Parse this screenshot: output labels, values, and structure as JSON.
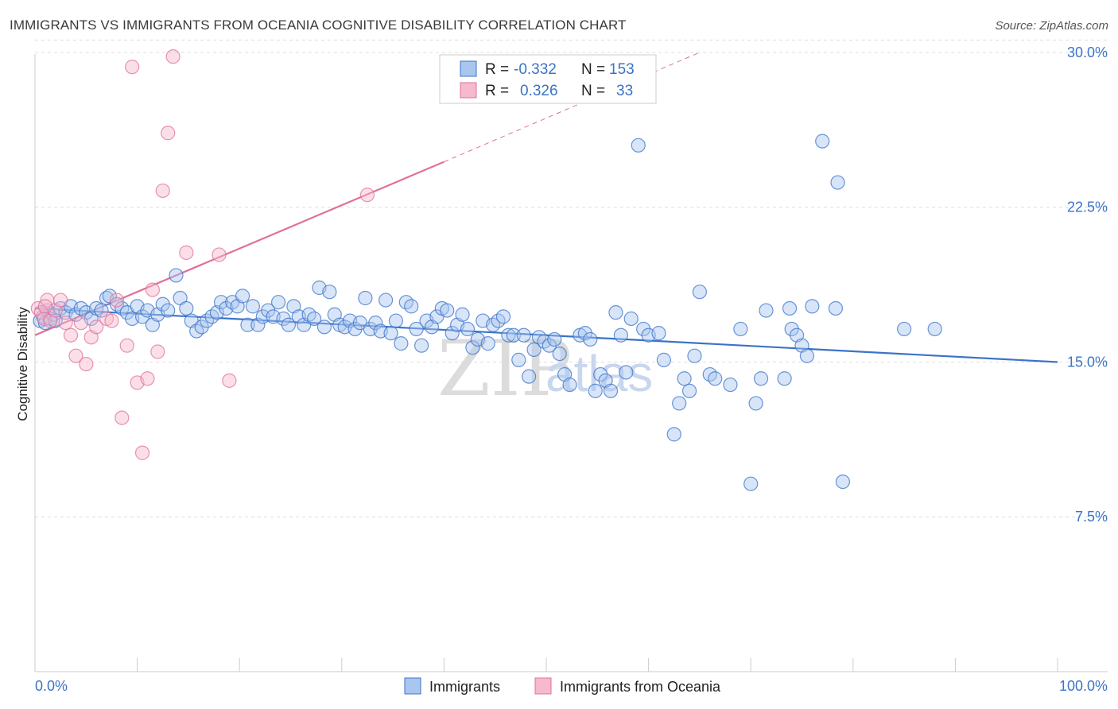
{
  "title": "IMMIGRANTS VS IMMIGRANTS FROM OCEANIA COGNITIVE DISABILITY CORRELATION CHART",
  "source": "Source: ZipAtlas.com",
  "watermark": {
    "zip": "ZIP",
    "atlas": "atlas"
  },
  "colors": {
    "blue": "#3b73c8",
    "blue_fill": "#a9c6ef",
    "pink": "#e0709a",
    "pink_fill": "#f6b9cd",
    "grid": "#dddddd"
  },
  "legend": {
    "r_label": "R =",
    "n_label": "N =",
    "rows": [
      {
        "r": "-0.332",
        "n": "153"
      },
      {
        "r": "0.326",
        "n": "33"
      }
    ]
  },
  "bottom_legend": [
    "Immigrants",
    "Immigrants from Oceania"
  ],
  "chart_data": {
    "type": "scatter",
    "title": "IMMIGRANTS VS IMMIGRANTS FROM OCEANIA COGNITIVE DISABILITY CORRELATION CHART",
    "xlabel": "",
    "ylabel": "Cognitive Disability",
    "xlim": [
      0,
      100
    ],
    "ylim": [
      0,
      31
    ],
    "x_tick_labels": [
      "0.0%",
      "100.0%"
    ],
    "y_ticks": [
      7.5,
      15.0,
      22.5,
      30.0
    ],
    "y_tick_labels": [
      "7.5%",
      "15.0%",
      "22.5%",
      "30.0%"
    ],
    "grid": "horizontal dashed",
    "series": [
      {
        "name": "Immigrants",
        "color": "#3b73c8",
        "trend": {
          "x0": 0,
          "y0": 17.6,
          "x1": 100,
          "y1": 15.0
        },
        "points": [
          [
            0.5,
            17.0
          ],
          [
            0.8,
            17.2
          ],
          [
            1.0,
            16.9
          ],
          [
            1.2,
            17.5
          ],
          [
            1.5,
            17.1
          ],
          [
            1.8,
            17.3
          ],
          [
            2.0,
            17.0
          ],
          [
            2.5,
            17.6
          ],
          [
            3.0,
            17.4
          ],
          [
            3.5,
            17.7
          ],
          [
            4.0,
            17.3
          ],
          [
            4.5,
            17.6
          ],
          [
            5.0,
            17.4
          ],
          [
            5.5,
            17.1
          ],
          [
            6.0,
            17.6
          ],
          [
            6.5,
            17.5
          ],
          [
            7.0,
            18.1
          ],
          [
            7.3,
            18.2
          ],
          [
            8.0,
            17.8
          ],
          [
            8.5,
            17.6
          ],
          [
            9.0,
            17.4
          ],
          [
            9.5,
            17.1
          ],
          [
            10.0,
            17.7
          ],
          [
            10.5,
            17.2
          ],
          [
            11.0,
            17.5
          ],
          [
            11.5,
            16.8
          ],
          [
            12.0,
            17.3
          ],
          [
            12.5,
            17.8
          ],
          [
            13.0,
            17.5
          ],
          [
            13.8,
            19.2
          ],
          [
            14.2,
            18.1
          ],
          [
            14.8,
            17.6
          ],
          [
            15.3,
            17.0
          ],
          [
            15.8,
            16.5
          ],
          [
            16.3,
            16.7
          ],
          [
            16.8,
            17.0
          ],
          [
            17.3,
            17.2
          ],
          [
            17.8,
            17.4
          ],
          [
            18.2,
            17.9
          ],
          [
            18.7,
            17.6
          ],
          [
            19.3,
            17.9
          ],
          [
            19.8,
            17.7
          ],
          [
            20.3,
            18.2
          ],
          [
            20.8,
            16.8
          ],
          [
            21.3,
            17.7
          ],
          [
            21.8,
            16.8
          ],
          [
            22.3,
            17.2
          ],
          [
            22.8,
            17.5
          ],
          [
            23.3,
            17.2
          ],
          [
            23.8,
            17.9
          ],
          [
            24.3,
            17.1
          ],
          [
            24.8,
            16.8
          ],
          [
            25.3,
            17.7
          ],
          [
            25.8,
            17.2
          ],
          [
            26.3,
            16.8
          ],
          [
            26.8,
            17.3
          ],
          [
            27.3,
            17.1
          ],
          [
            27.8,
            18.6
          ],
          [
            28.3,
            16.7
          ],
          [
            28.8,
            18.4
          ],
          [
            29.3,
            17.3
          ],
          [
            29.8,
            16.8
          ],
          [
            30.3,
            16.7
          ],
          [
            30.8,
            17.0
          ],
          [
            31.3,
            16.6
          ],
          [
            31.8,
            16.9
          ],
          [
            32.3,
            18.1
          ],
          [
            32.8,
            16.6
          ],
          [
            33.3,
            16.9
          ],
          [
            33.8,
            16.5
          ],
          [
            34.3,
            18.0
          ],
          [
            34.8,
            16.4
          ],
          [
            35.3,
            17.0
          ],
          [
            35.8,
            15.9
          ],
          [
            36.3,
            17.9
          ],
          [
            36.8,
            17.7
          ],
          [
            37.3,
            16.6
          ],
          [
            37.8,
            15.8
          ],
          [
            38.3,
            17.0
          ],
          [
            38.8,
            16.7
          ],
          [
            39.3,
            17.2
          ],
          [
            39.8,
            17.6
          ],
          [
            40.3,
            17.5
          ],
          [
            40.8,
            16.4
          ],
          [
            41.3,
            16.8
          ],
          [
            41.8,
            17.3
          ],
          [
            42.3,
            16.6
          ],
          [
            42.8,
            15.7
          ],
          [
            43.3,
            16.1
          ],
          [
            43.8,
            17.0
          ],
          [
            44.3,
            15.9
          ],
          [
            44.8,
            16.8
          ],
          [
            45.3,
            17.0
          ],
          [
            45.8,
            17.2
          ],
          [
            46.3,
            16.3
          ],
          [
            46.8,
            16.3
          ],
          [
            47.3,
            15.1
          ],
          [
            47.8,
            16.3
          ],
          [
            48.3,
            14.3
          ],
          [
            48.8,
            15.6
          ],
          [
            49.3,
            16.2
          ],
          [
            49.8,
            16.0
          ],
          [
            50.3,
            15.8
          ],
          [
            50.8,
            16.1
          ],
          [
            51.3,
            15.4
          ],
          [
            51.8,
            14.4
          ],
          [
            52.3,
            13.9
          ],
          [
            53.3,
            16.3
          ],
          [
            53.8,
            16.4
          ],
          [
            54.3,
            16.1
          ],
          [
            54.8,
            13.6
          ],
          [
            55.3,
            14.4
          ],
          [
            55.8,
            14.1
          ],
          [
            56.3,
            13.6
          ],
          [
            56.8,
            17.4
          ],
          [
            57.3,
            16.3
          ],
          [
            57.8,
            14.5
          ],
          [
            58.3,
            17.1
          ],
          [
            59.0,
            25.5
          ],
          [
            59.5,
            16.6
          ],
          [
            60.0,
            16.3
          ],
          [
            61.0,
            16.4
          ],
          [
            61.5,
            15.1
          ],
          [
            62.5,
            11.5
          ],
          [
            63.0,
            13.0
          ],
          [
            63.5,
            14.2
          ],
          [
            64.0,
            13.6
          ],
          [
            64.5,
            15.3
          ],
          [
            65.0,
            18.4
          ],
          [
            66.0,
            14.4
          ],
          [
            66.5,
            14.2
          ],
          [
            68.0,
            13.9
          ],
          [
            69.0,
            16.6
          ],
          [
            70.5,
            13.0
          ],
          [
            71.0,
            14.2
          ],
          [
            71.5,
            17.5
          ],
          [
            73.3,
            14.2
          ],
          [
            73.8,
            17.6
          ],
          [
            74.0,
            16.6
          ],
          [
            74.5,
            16.3
          ],
          [
            75.0,
            15.8
          ],
          [
            75.5,
            15.3
          ],
          [
            76.0,
            17.7
          ],
          [
            77.0,
            25.7
          ],
          [
            78.3,
            17.6
          ],
          [
            78.5,
            23.7
          ],
          [
            79.0,
            9.2
          ],
          [
            85.0,
            16.6
          ],
          [
            88.0,
            16.6
          ],
          [
            70.0,
            9.1
          ]
        ]
      },
      {
        "name": "Immigrants from Oceania",
        "color": "#e0709a",
        "trend": {
          "x0": 0,
          "y0": 16.3,
          "x1": 40,
          "y1": 24.7,
          "dashed_to_x": 65,
          "dashed_to_y": 30.0
        },
        "points": [
          [
            0.3,
            17.6
          ],
          [
            0.6,
            17.4
          ],
          [
            0.9,
            17.1
          ],
          [
            1.2,
            18.0
          ],
          [
            1.5,
            17.0
          ],
          [
            2.0,
            17.5
          ],
          [
            2.5,
            18.0
          ],
          [
            3.0,
            16.9
          ],
          [
            3.5,
            16.3
          ],
          [
            4.0,
            15.3
          ],
          [
            4.5,
            16.9
          ],
          [
            5.0,
            14.9
          ],
          [
            5.5,
            16.2
          ],
          [
            6.0,
            16.7
          ],
          [
            7.0,
            17.1
          ],
          [
            7.5,
            17.0
          ],
          [
            8.0,
            18.0
          ],
          [
            8.5,
            12.3
          ],
          [
            9.0,
            15.8
          ],
          [
            9.5,
            29.3
          ],
          [
            10.0,
            14.0
          ],
          [
            10.5,
            10.6
          ],
          [
            11.0,
            14.2
          ],
          [
            11.5,
            18.5
          ],
          [
            12.0,
            15.5
          ],
          [
            12.5,
            23.3
          ],
          [
            13.0,
            26.1
          ],
          [
            13.5,
            29.8
          ],
          [
            14.8,
            20.3
          ],
          [
            18.0,
            20.2
          ],
          [
            19.0,
            14.1
          ],
          [
            32.5,
            23.1
          ],
          [
            1.0,
            17.7
          ]
        ]
      }
    ]
  }
}
